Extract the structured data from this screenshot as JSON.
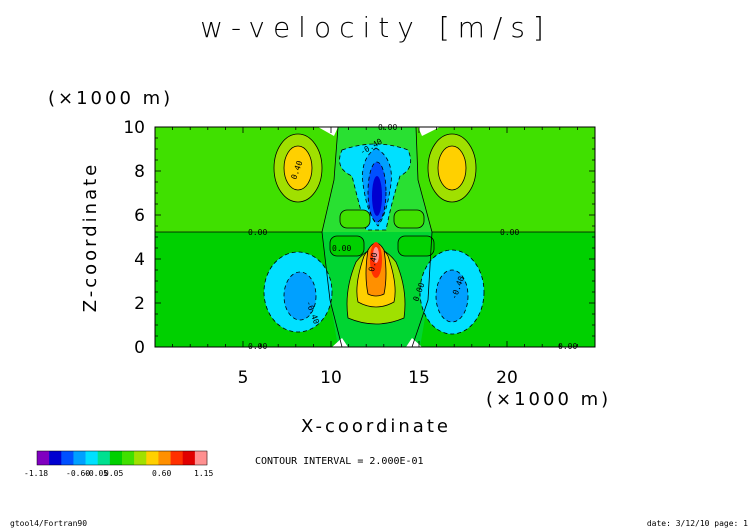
{
  "chart_data": {
    "type": "heatmap",
    "title": "w-velocity [m/s]",
    "xlabel": "X-coordinate",
    "ylabel": "Z-coordinate",
    "x_unit": "(×1000 m)",
    "y_unit": "(×1000 m)",
    "xlim": [
      0,
      25
    ],
    "ylim": [
      0,
      10
    ],
    "x_ticks": [
      "5",
      "10",
      "15",
      "20"
    ],
    "y_ticks": [
      "0",
      "2",
      "4",
      "6",
      "8",
      "10"
    ],
    "contour_interval": "CONTOUR INTERVAL = 2.000E-01",
    "contour_labels": [
      "0.00",
      "0.40",
      "-0.40"
    ],
    "colorbar": {
      "colors": [
        "#8000c0",
        "#0000d0",
        "#0050ff",
        "#00a0ff",
        "#00e0ff",
        "#00e090",
        "#00d000",
        "#40e000",
        "#a0e000",
        "#ffd000",
        "#ff9000",
        "#ff3000",
        "#e00000",
        "#ff9090"
      ],
      "labels": [
        "-1.18",
        "-0.60",
        "-0.05",
        "0.05",
        "0.60",
        "1.15"
      ]
    }
  },
  "footer": {
    "left": "gtool4/Fortran90",
    "right": "date: 3/12/10 page: 1"
  }
}
